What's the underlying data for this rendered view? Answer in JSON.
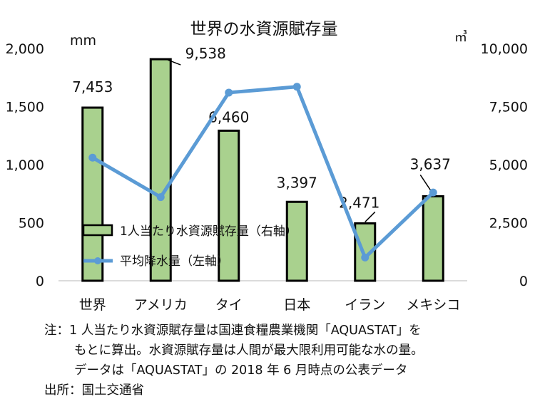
{
  "chart_data": {
    "type": "bar+line",
    "title": "世界の水資源賦存量",
    "left_axis_unit": "mm",
    "right_axis_unit": "㎥",
    "left_ylim": [
      0,
      2000
    ],
    "right_ylim": [
      0,
      10000
    ],
    "left_ticks": [
      "0",
      "500",
      "1,000",
      "1,500",
      "2,000"
    ],
    "right_ticks": [
      "0",
      "2,500",
      "5,000",
      "7,500",
      "10,000"
    ],
    "categories": [
      "世界",
      "アメリカ",
      "タイ",
      "日本",
      "イラン",
      "メキシコ"
    ],
    "series": [
      {
        "name": "1人当たり水資源賦存量（右軸）",
        "type": "bar",
        "axis": "right",
        "color": "#a9d18e",
        "values": [
          7453,
          9538,
          6460,
          3397,
          2471,
          3637
        ],
        "labels": [
          "7,453",
          "9,538",
          "6,460",
          "3,397",
          "2,471",
          "3,637"
        ]
      },
      {
        "name": "平均降水量（左軸）",
        "type": "line",
        "axis": "left",
        "color": "#5b9bd5",
        "values": [
          1060,
          720,
          1620,
          1670,
          200,
          760
        ]
      }
    ]
  },
  "notes": {
    "line1": "注：1 人当たり水資源賦存量は国連食糧農業機関「AQUASTAT」を",
    "line2": "もとに算出。水資源賦存量は人間が最大限利用可能な水の量。",
    "line3": "データは「AQUASTAT」の 2018 年 6 月時点の公表データ",
    "source": "出所：国土交通省"
  }
}
